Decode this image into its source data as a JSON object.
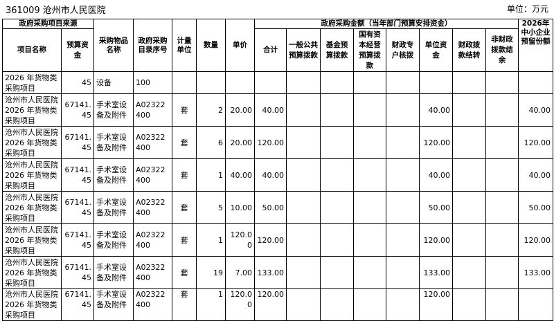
{
  "header": {
    "title": "361009 沧州市人民医院",
    "unit": "单位：万元"
  },
  "table": {
    "group_source": "政府采购项目来源",
    "group_amount": "政府采购金额（当年部门预算安排资金）",
    "columns": [
      "项目名称",
      "预算资金",
      "采购物品名称",
      "政府采购目录序号",
      "计量单位",
      "数量",
      "单价",
      "合计",
      "一般公共预算拨款",
      "基金预算拨款",
      "国有资本经营预算拨款",
      "财政专户核拨",
      "单位资金",
      "财政拨款结转",
      "非财政拨款结余",
      "2026年中小企业预留份额"
    ],
    "rows": [
      [
        "2026 年货物类采购项目",
        "45",
        "设备",
        "100",
        "",
        "",
        "",
        "",
        "",
        "",
        "",
        "",
        "",
        "",
        "",
        ""
      ],
      [
        "沧州市人民医院2026 年货物类采购项目",
        "67141.45",
        "手术室设备及附件",
        "A02322400",
        "套",
        "2",
        "20.00",
        "40.00",
        "",
        "",
        "",
        "",
        "40.00",
        "",
        "",
        "40.00"
      ],
      [
        "沧州市人民医院2026 年货物类采购项目",
        "67141.45",
        "手术室设备及附件",
        "A02322400",
        "套",
        "6",
        "20.00",
        "120.00",
        "",
        "",
        "",
        "",
        "120.00",
        "",
        "",
        "120.00"
      ],
      [
        "沧州市人民医院2026 年货物类采购项目",
        "67141.45",
        "手术室设备及附件",
        "A02322400",
        "套",
        "1",
        "40.00",
        "40.00",
        "",
        "",
        "",
        "",
        "40.00",
        "",
        "",
        "40.00"
      ],
      [
        "沧州市人民医院2026 年货物类采购项目",
        "67141.45",
        "手术室设备及附件",
        "A02322400",
        "套",
        "5",
        "10.00",
        "50.00",
        "",
        "",
        "",
        "",
        "50.00",
        "",
        "",
        "50.00"
      ],
      [
        "沧州市人民医院2026 年货物类采购项目",
        "67141.45",
        "手术室设备及附件",
        "A02322400",
        "套",
        "1",
        "120.00",
        "120.00",
        "",
        "",
        "",
        "",
        "120.00",
        "",
        "",
        "120.00"
      ],
      [
        "沧州市人民医院2026 年货物类采购项目",
        "67141.45",
        "手术室设备及附件",
        "A02322400",
        "套",
        "19",
        "7.00",
        "133.00",
        "",
        "",
        "",
        "",
        "133.00",
        "",
        "",
        "133.00"
      ],
      [
        "沧州市人民医院2026 年货物类采购项目",
        "67141.45",
        "手术室设备及附件",
        "A02322400",
        "套",
        "1",
        "120.00",
        "120.00",
        "",
        "",
        "",
        "",
        "120.00",
        "",
        "",
        ""
      ]
    ]
  }
}
